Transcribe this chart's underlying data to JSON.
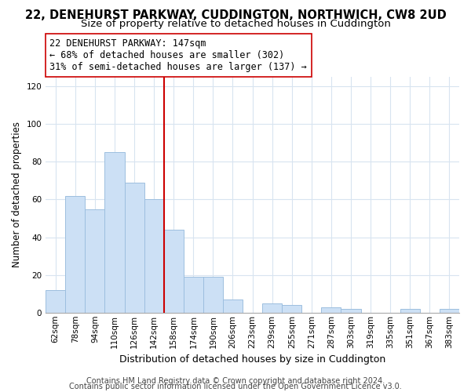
{
  "title": "22, DENEHURST PARKWAY, CUDDINGTON, NORTHWICH, CW8 2UD",
  "subtitle": "Size of property relative to detached houses in Cuddington",
  "xlabel": "Distribution of detached houses by size in Cuddington",
  "ylabel": "Number of detached properties",
  "bin_labels": [
    "62sqm",
    "78sqm",
    "94sqm",
    "110sqm",
    "126sqm",
    "142sqm",
    "158sqm",
    "174sqm",
    "190sqm",
    "206sqm",
    "223sqm",
    "239sqm",
    "255sqm",
    "271sqm",
    "287sqm",
    "303sqm",
    "319sqm",
    "335sqm",
    "351sqm",
    "367sqm",
    "383sqm"
  ],
  "bar_heights": [
    12,
    62,
    55,
    85,
    69,
    60,
    44,
    19,
    19,
    7,
    0,
    5,
    4,
    0,
    3,
    2,
    0,
    0,
    2,
    0,
    2
  ],
  "bar_color": "#cce0f5",
  "bar_edge_color": "#9dbfdf",
  "vline_x": 5.5,
  "vline_color": "#cc0000",
  "annotation_line1": "22 DENEHURST PARKWAY: 147sqm",
  "annotation_line2": "← 68% of detached houses are smaller (302)",
  "annotation_line3": "31% of semi-detached houses are larger (137) →",
  "annotation_box_color": "#ffffff",
  "annotation_box_edge": "#cc0000",
  "ylim": [
    0,
    125
  ],
  "yticks": [
    0,
    20,
    40,
    60,
    80,
    100,
    120
  ],
  "footer1": "Contains HM Land Registry data © Crown copyright and database right 2024.",
  "footer2": "Contains public sector information licensed under the Open Government Licence v3.0.",
  "title_fontsize": 10.5,
  "subtitle_fontsize": 9.5,
  "xlabel_fontsize": 9,
  "ylabel_fontsize": 8.5,
  "tick_fontsize": 7.5,
  "footer_fontsize": 7,
  "annotation_fontsize": 8.5,
  "grid_color": "#d8e4f0"
}
